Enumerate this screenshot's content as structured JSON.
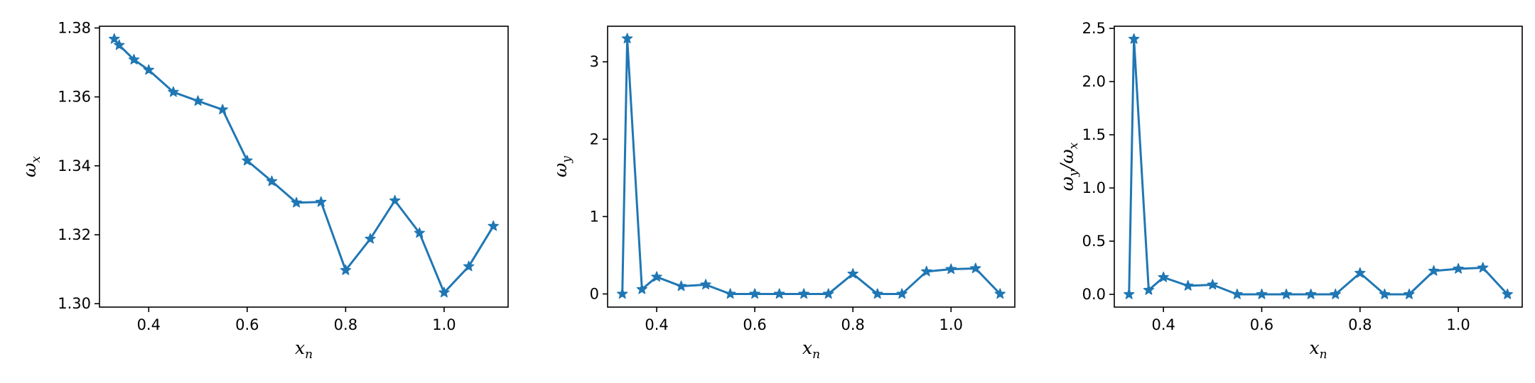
{
  "chart_data": [
    {
      "type": "line",
      "xlabel": "x_n",
      "ylabel": "ω_x",
      "xlim": [
        0.3,
        1.13
      ],
      "ylim": [
        1.299,
        1.3805
      ],
      "xticks": [
        0.4,
        0.6,
        0.8,
        1.0
      ],
      "xtick_labels": [
        "0.4",
        "0.6",
        "0.8",
        "1.0"
      ],
      "yticks": [
        1.3,
        1.32,
        1.34,
        1.36,
        1.38
      ],
      "ytick_labels": [
        "1.30",
        "1.32",
        "1.34",
        "1.36",
        "1.38"
      ],
      "marker": "star",
      "color": "#1f77b4",
      "grid": false,
      "x": [
        0.33,
        0.34,
        0.37,
        0.4,
        0.45,
        0.5,
        0.55,
        0.6,
        0.65,
        0.7,
        0.75,
        0.8,
        0.85,
        0.9,
        0.95,
        1.0,
        1.05,
        1.1
      ],
      "y": [
        1.3768,
        1.375,
        1.3708,
        1.3678,
        1.3614,
        1.3588,
        1.3563,
        1.3415,
        1.3355,
        1.3293,
        1.3295,
        1.3097,
        1.3188,
        1.3299,
        1.3205,
        1.3032,
        1.3108,
        1.3225
      ]
    },
    {
      "type": "line",
      "xlabel": "x_n",
      "ylabel": "ω_y",
      "xlim": [
        0.3,
        1.13
      ],
      "ylim": [
        -0.17,
        3.46
      ],
      "xticks": [
        0.4,
        0.6,
        0.8,
        1.0
      ],
      "xtick_labels": [
        "0.4",
        "0.6",
        "0.8",
        "1.0"
      ],
      "yticks": [
        0,
        1,
        2,
        3
      ],
      "ytick_labels": [
        "0",
        "1",
        "2",
        "3"
      ],
      "marker": "star",
      "color": "#1f77b4",
      "grid": false,
      "x": [
        0.33,
        0.34,
        0.37,
        0.4,
        0.45,
        0.5,
        0.55,
        0.6,
        0.65,
        0.7,
        0.75,
        0.8,
        0.85,
        0.9,
        0.95,
        1.0,
        1.05,
        1.1
      ],
      "y": [
        0.0,
        3.3,
        0.06,
        0.22,
        0.1,
        0.12,
        0.0,
        0.0,
        0.0,
        0.0,
        0.0,
        0.26,
        0.0,
        0.0,
        0.29,
        0.32,
        0.33,
        0.0
      ]
    },
    {
      "type": "line",
      "xlabel": "x_n",
      "ylabel": "ω_y/ω_x",
      "xlim": [
        0.3,
        1.13
      ],
      "ylim": [
        -0.12,
        2.52
      ],
      "xticks": [
        0.4,
        0.6,
        0.8,
        1.0
      ],
      "xtick_labels": [
        "0.4",
        "0.6",
        "0.8",
        "1.0"
      ],
      "yticks": [
        0.0,
        0.5,
        1.0,
        1.5,
        2.0,
        2.5
      ],
      "ytick_labels": [
        "0.0",
        "0.5",
        "1.0",
        "1.5",
        "2.0",
        "2.5"
      ],
      "marker": "star",
      "color": "#1f77b4",
      "grid": false,
      "x": [
        0.33,
        0.34,
        0.37,
        0.4,
        0.45,
        0.5,
        0.55,
        0.6,
        0.65,
        0.7,
        0.75,
        0.8,
        0.85,
        0.9,
        0.95,
        1.0,
        1.05,
        1.1
      ],
      "y": [
        0.0,
        2.4,
        0.04,
        0.16,
        0.08,
        0.09,
        0.0,
        0.0,
        0.0,
        0.0,
        0.0,
        0.2,
        0.0,
        0.0,
        0.22,
        0.24,
        0.25,
        0.0
      ]
    }
  ]
}
